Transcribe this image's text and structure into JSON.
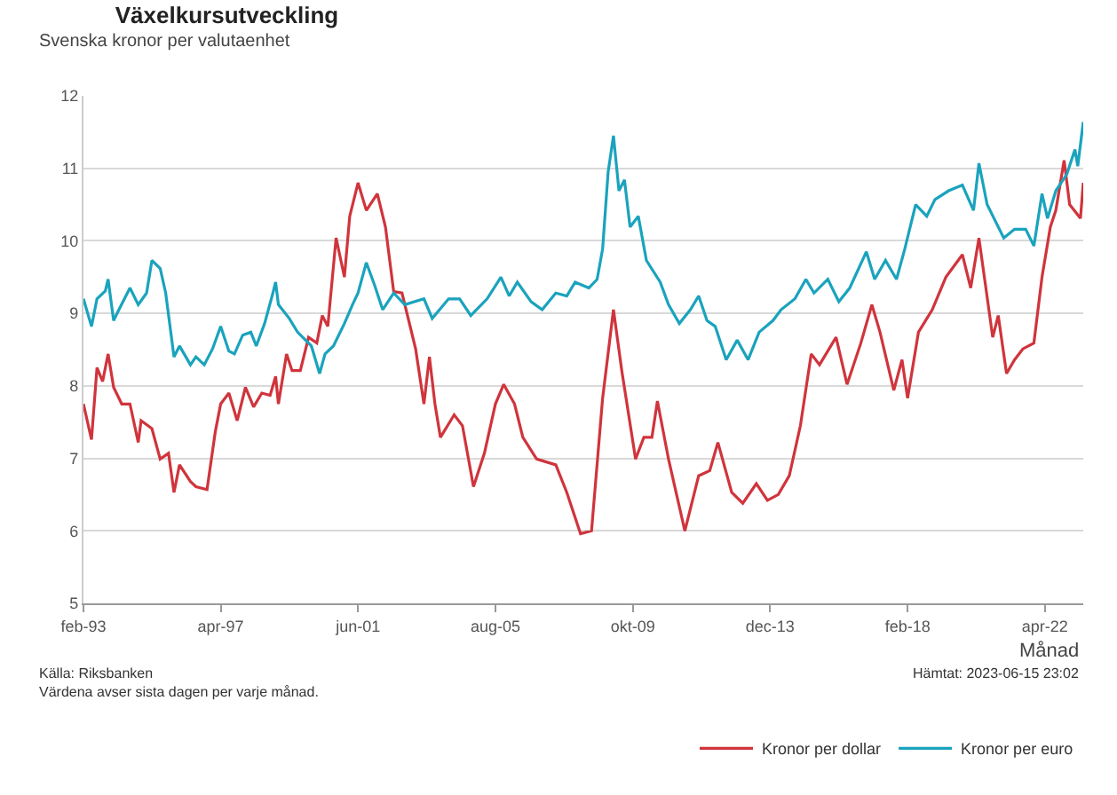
{
  "chart_data": {
    "type": "line",
    "title": "Växelkursutveckling",
    "subtitle": "Svenska kronor per valutaenhet",
    "xlabel": "Månad",
    "annotations": [
      "Källa: Riksbanken",
      "Värdena avser sista dagen per varje månad.",
      "Hämtat: 2023-06-15 23:02"
    ],
    "xlim": [
      "1993-02",
      "2023-06"
    ],
    "xticks": [
      {
        "value": "1993-02",
        "label": "feb-93"
      },
      {
        "value": "1997-04",
        "label": "apr-97"
      },
      {
        "value": "2001-06",
        "label": "jun-01"
      },
      {
        "value": "2005-08",
        "label": "aug-05"
      },
      {
        "value": "2009-10",
        "label": "okt-09"
      },
      {
        "value": "2013-12",
        "label": "dec-13"
      },
      {
        "value": "2018-02",
        "label": "feb-18"
      },
      {
        "value": "2022-04",
        "label": "apr-22"
      }
    ],
    "ylim": [
      5,
      12
    ],
    "yticks": [
      5,
      6,
      7,
      8,
      9,
      10,
      11,
      12
    ],
    "grid": "y",
    "legend": "bottom right",
    "series": [
      {
        "name": "Kronor per dollar",
        "color": "#d0343c",
        "x": [
          "1993-02",
          "1993-05",
          "1993-07",
          "1993-09",
          "1993-11",
          "1994-01",
          "1994-04",
          "1994-07",
          "1994-10",
          "1994-11",
          "1995-03",
          "1995-06",
          "1995-09",
          "1995-11",
          "1996-01",
          "1996-05",
          "1996-07",
          "1996-11",
          "1997-02",
          "1997-04",
          "1997-07",
          "1997-10",
          "1998-01",
          "1998-04",
          "1998-07",
          "1998-10",
          "1998-12",
          "1999-01",
          "1999-04",
          "1999-06",
          "1999-09",
          "1999-12",
          "2000-03",
          "2000-05",
          "2000-07",
          "2000-10",
          "2001-01",
          "2001-03",
          "2001-06",
          "2001-09",
          "2002-01",
          "2002-04",
          "2002-07",
          "2002-10",
          "2003-03",
          "2003-06",
          "2003-08",
          "2003-10",
          "2003-12",
          "2004-05",
          "2004-08",
          "2004-12",
          "2005-04",
          "2005-08",
          "2005-11",
          "2006-03",
          "2006-06",
          "2006-11",
          "2007-06",
          "2007-10",
          "2008-03",
          "2008-07",
          "2008-11",
          "2009-03",
          "2009-06",
          "2009-11",
          "2010-02",
          "2010-05",
          "2010-07",
          "2010-11",
          "2011-05",
          "2011-10",
          "2012-02",
          "2012-05",
          "2012-10",
          "2013-02",
          "2013-07",
          "2013-11",
          "2014-03",
          "2014-07",
          "2014-11",
          "2015-03",
          "2015-06",
          "2015-12",
          "2016-04",
          "2016-09",
          "2017-01",
          "2017-04",
          "2017-09",
          "2017-12",
          "2018-02",
          "2018-06",
          "2018-11",
          "2019-04",
          "2019-10",
          "2020-01",
          "2020-04",
          "2020-09",
          "2020-11",
          "2021-02",
          "2021-05",
          "2021-08",
          "2021-12",
          "2022-03",
          "2022-06",
          "2022-08",
          "2022-11",
          "2023-01",
          "2023-05",
          "2023-06"
        ],
        "values": [
          7.75,
          7.26,
          8.25,
          8.06,
          8.44,
          7.98,
          7.75,
          7.75,
          7.22,
          7.52,
          7.41,
          6.99,
          7.07,
          6.53,
          6.91,
          6.68,
          6.61,
          6.57,
          7.37,
          7.75,
          7.9,
          7.52,
          7.98,
          7.71,
          7.9,
          7.87,
          8.13,
          7.75,
          8.44,
          8.21,
          8.21,
          8.67,
          8.59,
          8.97,
          8.82,
          10.04,
          9.5,
          10.34,
          10.8,
          10.42,
          10.65,
          10.19,
          9.3,
          9.28,
          8.51,
          7.75,
          8.4,
          7.75,
          7.29,
          7.6,
          7.45,
          6.61,
          7.07,
          7.75,
          8.02,
          7.75,
          7.29,
          6.99,
          6.91,
          6.53,
          5.96,
          6.0,
          7.83,
          9.05,
          8.21,
          6.99,
          7.29,
          7.29,
          7.79,
          6.99,
          6.0,
          6.76,
          6.83,
          7.22,
          6.53,
          6.38,
          6.65,
          6.42,
          6.5,
          6.76,
          7.45,
          8.44,
          8.29,
          8.67,
          8.02,
          8.59,
          9.12,
          8.74,
          7.94,
          8.36,
          7.83,
          8.74,
          9.05,
          9.5,
          9.81,
          9.35,
          10.04,
          8.67,
          8.97,
          8.17,
          8.36,
          8.51,
          8.59,
          9.5,
          10.19,
          10.42,
          11.11,
          10.5,
          10.31,
          10.8
        ]
      },
      {
        "name": "Kronor per euro",
        "color": "#1aa3bd",
        "x": [
          "1993-02",
          "1993-05",
          "1993-07",
          "1993-10",
          "1993-11",
          "1994-01",
          "1994-03",
          "1994-07",
          "1994-10",
          "1995-01",
          "1995-03",
          "1995-06",
          "1995-08",
          "1995-11",
          "1996-01",
          "1996-05",
          "1996-07",
          "1996-10",
          "1997-01",
          "1997-04",
          "1997-07",
          "1997-09",
          "1997-12",
          "1998-03",
          "1998-05",
          "1998-08",
          "1998-11",
          "1998-12",
          "1999-01",
          "1999-05",
          "1999-08",
          "2000-01",
          "2000-04",
          "2000-06",
          "2000-09",
          "2001-01",
          "2001-04",
          "2001-06",
          "2001-09",
          "2001-12",
          "2002-03",
          "2002-07",
          "2002-11",
          "2003-06",
          "2003-09",
          "2004-03",
          "2004-07",
          "2004-11",
          "2005-05",
          "2005-10",
          "2006-01",
          "2006-04",
          "2006-09",
          "2007-01",
          "2007-06",
          "2007-10",
          "2008-01",
          "2008-06",
          "2008-09",
          "2008-11",
          "2009-01",
          "2009-03",
          "2009-05",
          "2009-07",
          "2009-09",
          "2009-12",
          "2010-03",
          "2010-08",
          "2010-11",
          "2011-03",
          "2011-07",
          "2011-10",
          "2012-01",
          "2012-04",
          "2012-08",
          "2012-12",
          "2013-04",
          "2013-08",
          "2014-01",
          "2014-04",
          "2014-09",
          "2015-01",
          "2015-04",
          "2015-09",
          "2016-01",
          "2016-05",
          "2016-11",
          "2017-02",
          "2017-06",
          "2017-10",
          "2018-01",
          "2018-05",
          "2018-09",
          "2018-12",
          "2019-05",
          "2019-10",
          "2020-02",
          "2020-04",
          "2020-07",
          "2020-10",
          "2021-01",
          "2021-05",
          "2021-09",
          "2021-12",
          "2022-03",
          "2022-05",
          "2022-08",
          "2022-12",
          "2023-03",
          "2023-04",
          "2023-06"
        ],
        "values": [
          9.2,
          8.82,
          9.2,
          9.31,
          9.47,
          8.9,
          9.05,
          9.35,
          9.12,
          9.28,
          9.73,
          9.62,
          9.28,
          8.4,
          8.55,
          8.29,
          8.4,
          8.29,
          8.51,
          8.82,
          8.48,
          8.44,
          8.7,
          8.74,
          8.55,
          8.86,
          9.28,
          9.43,
          9.12,
          8.93,
          8.74,
          8.55,
          8.17,
          8.44,
          8.55,
          8.86,
          9.12,
          9.28,
          9.7,
          9.39,
          9.05,
          9.28,
          9.12,
          9.2,
          8.93,
          9.2,
          9.2,
          8.97,
          9.2,
          9.5,
          9.24,
          9.43,
          9.16,
          9.05,
          9.28,
          9.24,
          9.43,
          9.35,
          9.47,
          9.89,
          10.95,
          11.45,
          10.69,
          10.84,
          10.19,
          10.34,
          9.73,
          9.43,
          9.12,
          8.86,
          9.05,
          9.24,
          8.9,
          8.82,
          8.36,
          8.63,
          8.36,
          8.74,
          8.9,
          9.05,
          9.2,
          9.47,
          9.28,
          9.47,
          9.16,
          9.35,
          9.85,
          9.47,
          9.73,
          9.47,
          9.89,
          10.5,
          10.34,
          10.57,
          10.69,
          10.77,
          10.42,
          11.07,
          10.5,
          10.27,
          10.04,
          10.16,
          10.16,
          9.93,
          10.65,
          10.31,
          10.69,
          10.92,
          11.26,
          11.03,
          11.64
        ]
      }
    ]
  }
}
